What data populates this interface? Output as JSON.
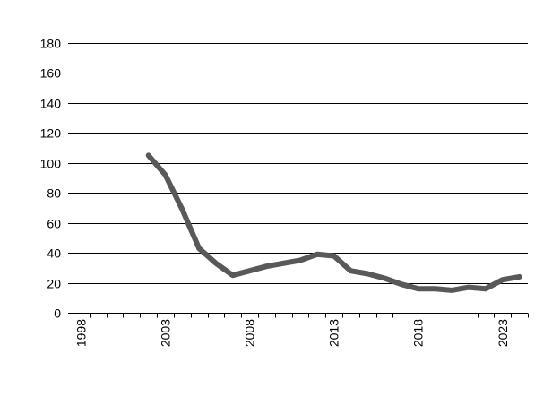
{
  "chart_data": {
    "type": "line",
    "title": "",
    "xlabel": "",
    "ylabel": "",
    "x": [
      2002,
      2003,
      2004,
      2005,
      2006,
      2007,
      2008,
      2009,
      2010,
      2011,
      2012,
      2013,
      2014,
      2015,
      2016,
      2017,
      2018,
      2019,
      2020,
      2021,
      2022,
      2023,
      2024
    ],
    "series": [
      {
        "values": [
          105,
          92,
          69,
          43,
          33,
          25,
          28,
          31,
          33,
          35,
          39,
          38,
          28,
          26,
          23,
          19,
          16,
          16,
          15,
          17,
          16,
          22,
          24
        ]
      }
    ],
    "xlim": [
      1998,
      2025
    ],
    "ylim": [
      0,
      180
    ],
    "y_ticks": [
      0,
      20,
      40,
      60,
      80,
      100,
      120,
      140,
      160,
      180
    ],
    "x_tick_labels": [
      "1998",
      "2003",
      "2008",
      "2013",
      "2018",
      "2023"
    ],
    "grid": "horizontal",
    "legend": "none",
    "colors": {
      "line": "#595959",
      "grid": "#000000",
      "axis": "#000000"
    }
  }
}
